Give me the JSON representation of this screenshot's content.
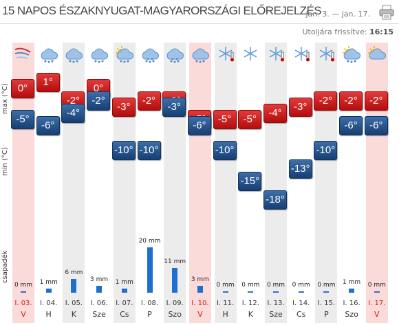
{
  "header": {
    "title": "15 napos északnyugat-magyarországi előrejelzés",
    "date_range": "jan. 3. — jan. 17.",
    "updated_label": "Utoljára frissítve:",
    "updated_time": "16:15"
  },
  "axis": {
    "max": "max (°C)",
    "min": "min (°C)",
    "precip": "csapadék"
  },
  "days": [
    {
      "date": "I. 03.",
      "day": "V",
      "max": "0°",
      "min": "-5°",
      "precip": "0 mm",
      "precip_mm": 0,
      "icon": "wind-snow-icon",
      "highlight": "pink"
    },
    {
      "date": "I. 04.",
      "day": "H",
      "max": "1°",
      "min": "-6°",
      "precip": "1 mm",
      "precip_mm": 1,
      "icon": "cloud-snow-icon",
      "highlight": ""
    },
    {
      "date": "I. 05.",
      "day": "K",
      "max": "-2°",
      "min": "-4°",
      "precip": "6 mm",
      "precip_mm": 6,
      "icon": "cloud-snow-icon",
      "highlight": "shade"
    },
    {
      "date": "I. 06.",
      "day": "Sze",
      "max": "0°",
      "min": "-2°",
      "precip": "3 mm",
      "precip_mm": 3,
      "icon": "cloud-snow-icon",
      "highlight": ""
    },
    {
      "date": "I. 07.",
      "day": "Cs",
      "max": "-3°",
      "min": "-10°",
      "precip": "1 mm",
      "precip_mm": 1,
      "icon": "sun-cloud-snow-icon",
      "highlight": "shade"
    },
    {
      "date": "I. 08.",
      "day": "P",
      "max": "-2°",
      "min": "-10°",
      "precip": "20 mm",
      "precip_mm": 20,
      "icon": "heavy-snow-icon",
      "highlight": ""
    },
    {
      "date": "I. 09.",
      "day": "Szo",
      "max": "-2°",
      "min": "-3°",
      "precip": "11 mm",
      "precip_mm": 11,
      "icon": "heavy-snow-icon",
      "highlight": "shade"
    },
    {
      "date": "I. 10.",
      "day": "V",
      "max": "-5°",
      "min": "-6°",
      "precip": "3 mm",
      "precip_mm": 3,
      "icon": "cloud-snow-icon",
      "highlight": "pink"
    },
    {
      "date": "I. 11.",
      "day": "H",
      "max": "-5°",
      "min": "-10°",
      "precip": "0 mm",
      "precip_mm": 0,
      "icon": "cold-flake-icon",
      "highlight": "shade"
    },
    {
      "date": "I. 12.",
      "day": "K",
      "max": "-5°",
      "min": "-15°",
      "precip": "0 mm",
      "precip_mm": 0,
      "icon": "snowflake-icon",
      "highlight": ""
    },
    {
      "date": "I. 13.",
      "day": "Sze",
      "max": "-4°",
      "min": "-18°",
      "precip": "0 mm",
      "precip_mm": 0,
      "icon": "cold-flake-icon",
      "highlight": "shade"
    },
    {
      "date": "I. 14.",
      "day": "Cs",
      "max": "-3°",
      "min": "-13°",
      "precip": "0 mm",
      "precip_mm": 0,
      "icon": "cold-flake-icon",
      "highlight": ""
    },
    {
      "date": "I. 15.",
      "day": "P",
      "max": "-2°",
      "min": "-10°",
      "precip": "0 mm",
      "precip_mm": 0,
      "icon": "cold-flake-icon",
      "highlight": "shade"
    },
    {
      "date": "I. 16.",
      "day": "Szo",
      "max": "-2°",
      "min": "-6°",
      "precip": "1 mm",
      "precip_mm": 1,
      "icon": "sun-cloud-snow-icon",
      "highlight": ""
    },
    {
      "date": "I. 17.",
      "day": "V",
      "max": "-2°",
      "min": "-6°",
      "precip": "0 mm",
      "precip_mm": 0,
      "icon": "sun-cloud-icon",
      "highlight": "pink"
    }
  ],
  "colors": {
    "max_box": "#c41818",
    "min_box": "#1d4a80",
    "precip_bar": "#1f6fd1",
    "sunday": "#d41d1d",
    "sunday_bg": "#fbdada",
    "alt_bg": "#ececec"
  }
}
